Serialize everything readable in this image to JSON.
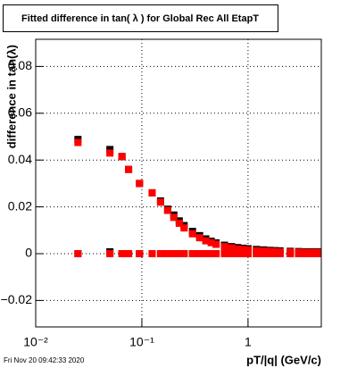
{
  "chart_data": {
    "type": "scatter",
    "title": "Fitted difference in tan( λ ) for Global Rec All EtapT",
    "x_label": "pT/|q| (GeV/c)",
    "y_label": "difference in tan(λ)",
    "date": "Fri Nov 20 09:42:33 2020",
    "x_log": true,
    "grid": true,
    "xlim": [
      0.01,
      4.9
    ],
    "ylim": [
      -0.0313,
      0.0916
    ],
    "xticks": [
      {
        "value": 0.01,
        "label": "10⁻²"
      },
      {
        "value": 0.1,
        "label": "10⁻¹"
      },
      1
    ],
    "yticks": [
      {
        "value": -0.02,
        "label": "−0.02"
      },
      0,
      0.02,
      0.04,
      0.06,
      0.08
    ],
    "x": [
      0.025,
      0.05,
      0.065,
      0.075,
      0.095,
      0.125,
      0.15,
      0.175,
      0.2,
      0.225,
      0.25,
      0.3,
      0.35,
      0.4,
      0.45,
      0.5,
      0.6,
      0.7,
      0.8,
      0.9,
      1.0,
      1.2,
      1.4,
      1.6,
      1.8,
      2.0,
      2.5,
      3.0,
      3.5,
      4.0,
      4.5
    ],
    "series": [
      {
        "color": "#000000",
        "values": [
          0.0488,
          0.0445,
          0.0415,
          0.036,
          0.03,
          0.026,
          0.0225,
          0.019,
          0.0165,
          0.014,
          0.012,
          0.0095,
          0.0077,
          0.0063,
          0.0053,
          0.0046,
          0.0036,
          0.003,
          0.0026,
          0.0023,
          0.0021,
          0.0018,
          0.0016,
          0.0014,
          0.0013,
          0.0012,
          0.001,
          0.0009,
          0.0008,
          0.0008,
          0.0008
        ]
      },
      {
        "color": "#000000",
        "values": [
          0,
          0.0008,
          0,
          0,
          0,
          0,
          0,
          0,
          0,
          0,
          0,
          0,
          0,
          0,
          0,
          0,
          0,
          0,
          0,
          0,
          0,
          0,
          0,
          0,
          0,
          0,
          0,
          0,
          0,
          0,
          0
        ]
      },
      {
        "color": "#ff0000",
        "values": [
          0.0475,
          0.043,
          0.0415,
          0.036,
          0.03,
          0.026,
          0.022,
          0.0185,
          0.0155,
          0.013,
          0.011,
          0.0085,
          0.0068,
          0.0055,
          0.0047,
          0.004,
          0.003,
          0.0025,
          0.002,
          0.0018,
          0.0016,
          0.0013,
          0.0011,
          0.001,
          0.0009,
          0.0008,
          0.0007,
          0.0006,
          0.0005,
          0.0005,
          0.0005
        ]
      },
      {
        "color": "#ff0000",
        "values": [
          0,
          0,
          0,
          0,
          0,
          0,
          0,
          0,
          0,
          0,
          0,
          0,
          0,
          0,
          0,
          0,
          0,
          0,
          0,
          0,
          0,
          0,
          0,
          0,
          0,
          0,
          0,
          0,
          0,
          0,
          0
        ]
      }
    ]
  }
}
